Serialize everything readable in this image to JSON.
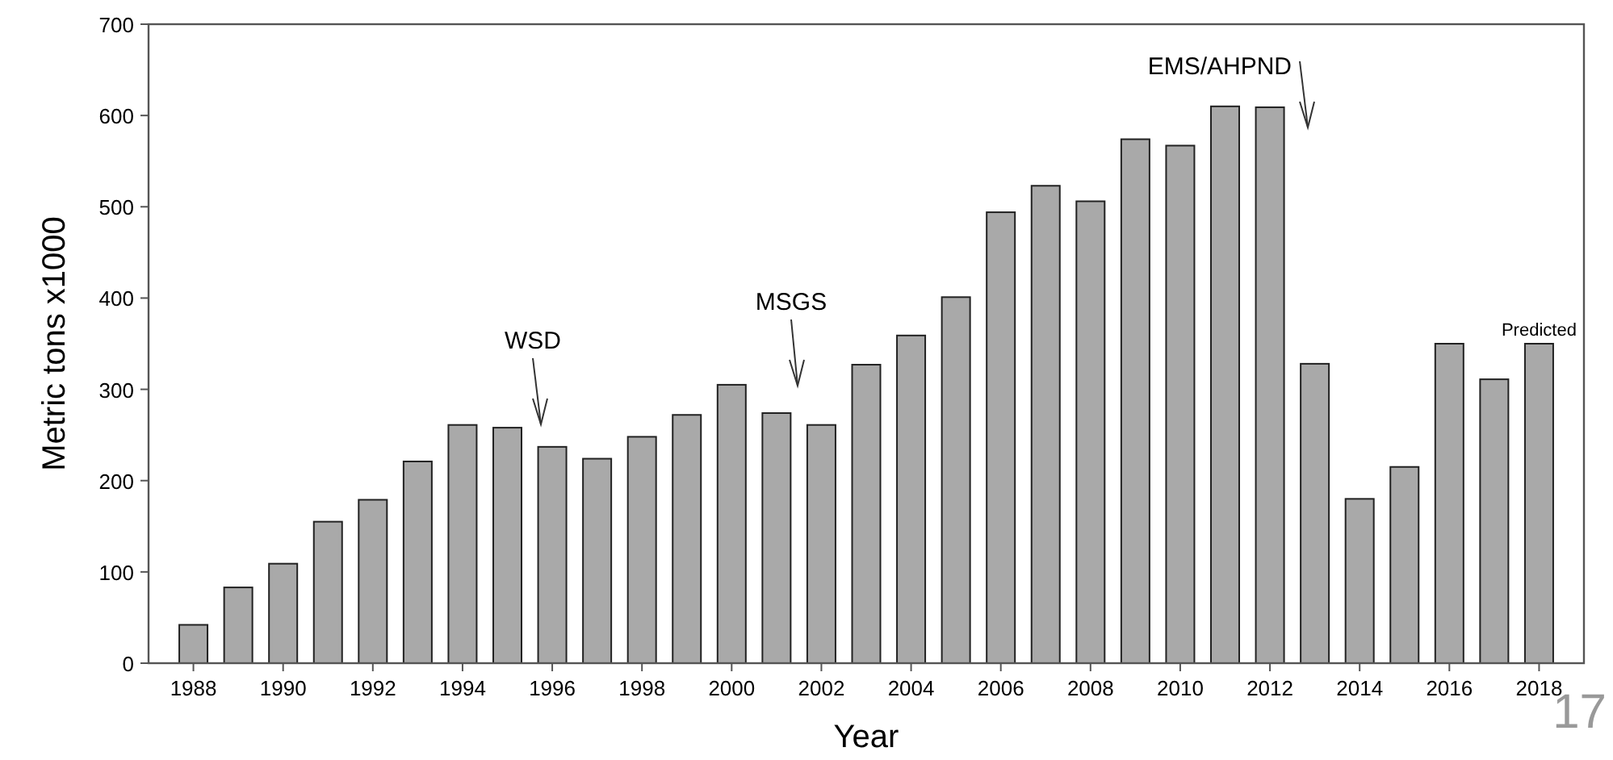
{
  "chart_data": {
    "type": "bar",
    "xlabel": "Year",
    "ylabel": "Metric tons x1000",
    "x": [
      1988,
      1989,
      1990,
      1991,
      1992,
      1993,
      1994,
      1995,
      1996,
      1997,
      1998,
      1999,
      2000,
      2001,
      2002,
      2003,
      2004,
      2005,
      2006,
      2007,
      2008,
      2009,
      2010,
      2011,
      2012,
      2013,
      2014,
      2015,
      2016,
      2017,
      2018
    ],
    "values": [
      42,
      83,
      109,
      155,
      179,
      221,
      261,
      258,
      237,
      224,
      248,
      272,
      305,
      274,
      261,
      327,
      359,
      401,
      494,
      523,
      506,
      574,
      567,
      610,
      609,
      328,
      180,
      215,
      350,
      311,
      350
    ],
    "value_labels": [
      null,
      null,
      null,
      null,
      null,
      null,
      null,
      null,
      null,
      null,
      null,
      null,
      null,
      null,
      null,
      null,
      null,
      null,
      null,
      null,
      null,
      null,
      null,
      null,
      null,
      null,
      null,
      null,
      null,
      null,
      "Predicted"
    ],
    "color": "#a9a9a9",
    "xlim": [
      1987,
      2019
    ],
    "xticks": [
      1988,
      1990,
      1992,
      1994,
      1996,
      1998,
      2000,
      2002,
      2004,
      2006,
      2008,
      2010,
      2012,
      2014,
      2016,
      2018
    ],
    "ylim": [
      0,
      700
    ],
    "yticks": [
      0,
      100,
      200,
      300,
      400,
      500,
      600,
      700
    ],
    "grid": false,
    "annotations": [
      "WSD",
      "MSGS",
      "EMS/AHPND",
      "17"
    ]
  }
}
